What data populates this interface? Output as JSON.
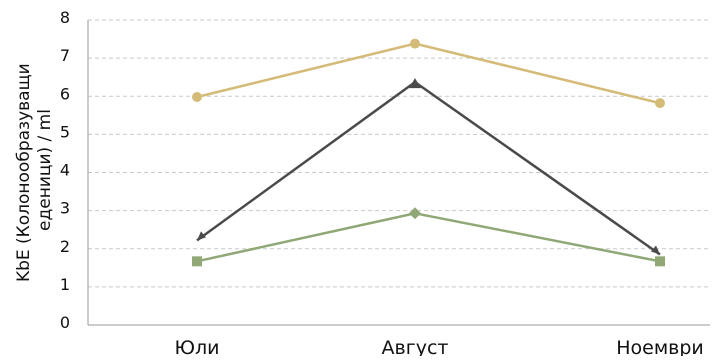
{
  "chart_data": {
    "type": "line",
    "categories": [
      "Юли",
      "Август",
      "Ноември"
    ],
    "ylabel_lines": [
      "KbE (Колонообразуващи",
      "еденици) / ml"
    ],
    "ylim": [
      0,
      8
    ],
    "yticks": [
      0,
      1,
      2,
      3,
      4,
      5,
      6,
      7,
      8
    ],
    "grid": "horizontal dashed",
    "legend": "none",
    "series": [
      {
        "values": [
          5.98,
          7.38,
          5.82
        ],
        "color": "#d4bb78",
        "marker": "circle"
      },
      {
        "values": [
          2.22,
          6.37,
          1.85
        ],
        "color": "#4a4a4a",
        "marker": "triangle"
      },
      {
        "values": [
          1.67,
          2.93,
          1.67
        ],
        "color": "#8fa876",
        "marker": "square"
      }
    ]
  }
}
